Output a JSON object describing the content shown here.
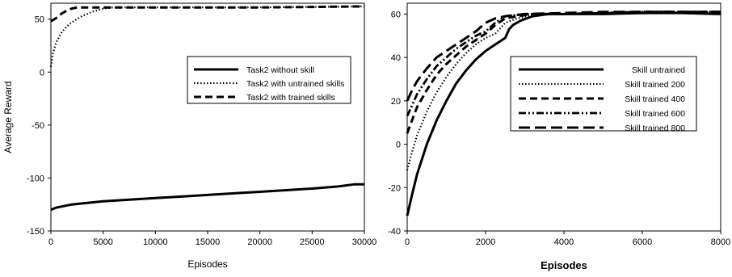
{
  "chart_data": [
    {
      "type": "line",
      "xlabel": "Episodes",
      "ylabel": "Average Reward",
      "xlim": [
        0,
        30000
      ],
      "ylim": [
        -150,
        65
      ],
      "xticks": [
        0,
        5000,
        10000,
        15000,
        20000,
        25000,
        30000
      ],
      "yticks": [
        -150,
        -100,
        -50,
        0,
        50
      ],
      "legend_position": "right-middle",
      "grid": false,
      "series": [
        {
          "name": "Task2 without skill",
          "style": "solid",
          "x": [
            0,
            500,
            1000,
            2000,
            3000,
            5000,
            7500,
            10000,
            12500,
            15000,
            17500,
            20000,
            22500,
            25000,
            27500,
            29000,
            30000
          ],
          "y": [
            -130,
            -128,
            -127,
            -125,
            -124,
            -122,
            -120.5,
            -119,
            -117.5,
            -116,
            -114.5,
            -113,
            -111.5,
            -110,
            -108,
            -106,
            -106
          ]
        },
        {
          "name": "Task2 with untrained skills",
          "style": "dotted",
          "x": [
            0,
            200,
            500,
            1000,
            1500,
            2000,
            2500,
            3000,
            3500,
            4000,
            5000,
            6000,
            10000,
            15000,
            20000,
            25000,
            30000
          ],
          "y": [
            5,
            18,
            28,
            37,
            43,
            47,
            50,
            53,
            55,
            57,
            60,
            61,
            61,
            61,
            61,
            61.5,
            62
          ]
        },
        {
          "name": "Task2 with trained skills",
          "style": "dashed",
          "x": [
            0,
            500,
            1000,
            1500,
            2000,
            2500,
            3000,
            5000,
            10000,
            15000,
            20000,
            25000,
            30000
          ],
          "y": [
            48,
            51,
            55,
            58,
            60,
            61,
            61,
            61,
            61,
            61,
            61,
            61.5,
            62
          ]
        }
      ]
    },
    {
      "type": "line",
      "xlabel": "Episodes",
      "ylabel": "",
      "xlim": [
        0,
        8000
      ],
      "ylim": [
        -40,
        65
      ],
      "xticks": [
        0,
        2000,
        4000,
        6000,
        8000
      ],
      "yticks": [
        -40,
        -20,
        0,
        20,
        40,
        60
      ],
      "legend_position": "right-middle",
      "grid": false,
      "series": [
        {
          "name": "Skill untrained",
          "style": "solid",
          "x": [
            0,
            100,
            250,
            500,
            750,
            1000,
            1250,
            1500,
            1750,
            2000,
            2250,
            2500,
            2600,
            2700,
            2900,
            3200,
            3600,
            4000,
            5000,
            6000,
            7000,
            8000
          ],
          "y": [
            -33,
            -25,
            -14,
            0,
            11,
            20,
            28,
            34,
            39,
            43,
            46,
            49,
            53,
            55,
            57,
            59,
            60,
            60,
            60,
            60.5,
            60.5,
            60
          ]
        },
        {
          "name": "Skill trained 200",
          "style": "dotted",
          "x": [
            0,
            100,
            250,
            500,
            750,
            1000,
            1250,
            1500,
            1750,
            2000,
            2250,
            2500,
            2800,
            3200,
            4000,
            5000,
            6000,
            7000,
            8000
          ],
          "y": [
            -12,
            -5,
            4,
            15,
            24,
            31,
            37,
            42,
            46,
            49,
            51,
            56,
            58,
            59.5,
            60,
            60.5,
            60.5,
            61,
            60.5
          ]
        },
        {
          "name": "Skill trained 400",
          "style": "dashed",
          "x": [
            0,
            100,
            250,
            500,
            750,
            1000,
            1250,
            1500,
            1750,
            2000,
            2250,
            2500,
            2800,
            3200,
            4000,
            5000,
            6000,
            7000,
            8000
          ],
          "y": [
            5,
            10,
            17,
            25,
            32,
            37,
            41,
            45,
            48,
            51,
            55,
            58,
            59,
            60,
            60,
            60.5,
            61,
            61,
            61
          ]
        },
        {
          "name": "Skill trained 600",
          "style": "dashdotdot",
          "x": [
            0,
            100,
            250,
            500,
            750,
            1000,
            1250,
            1500,
            1750,
            2000,
            2250,
            2500,
            3000,
            4000,
            5000,
            6000,
            7000,
            8000
          ],
          "y": [
            13,
            17,
            23,
            30,
            36,
            40,
            44,
            47,
            50,
            52,
            56,
            59,
            60,
            60,
            60.5,
            61,
            61,
            61
          ]
        },
        {
          "name": "Skill trained 800",
          "style": "longdash",
          "x": [
            0,
            100,
            250,
            500,
            750,
            1000,
            1250,
            1500,
            1750,
            2000,
            2250,
            2500,
            3000,
            4000,
            5000,
            6000,
            7000,
            8000
          ],
          "y": [
            20,
            24,
            29,
            35,
            40,
            43,
            46,
            49,
            52,
            56,
            58,
            59,
            60,
            60.5,
            61,
            61,
            61,
            61
          ]
        }
      ]
    }
  ]
}
